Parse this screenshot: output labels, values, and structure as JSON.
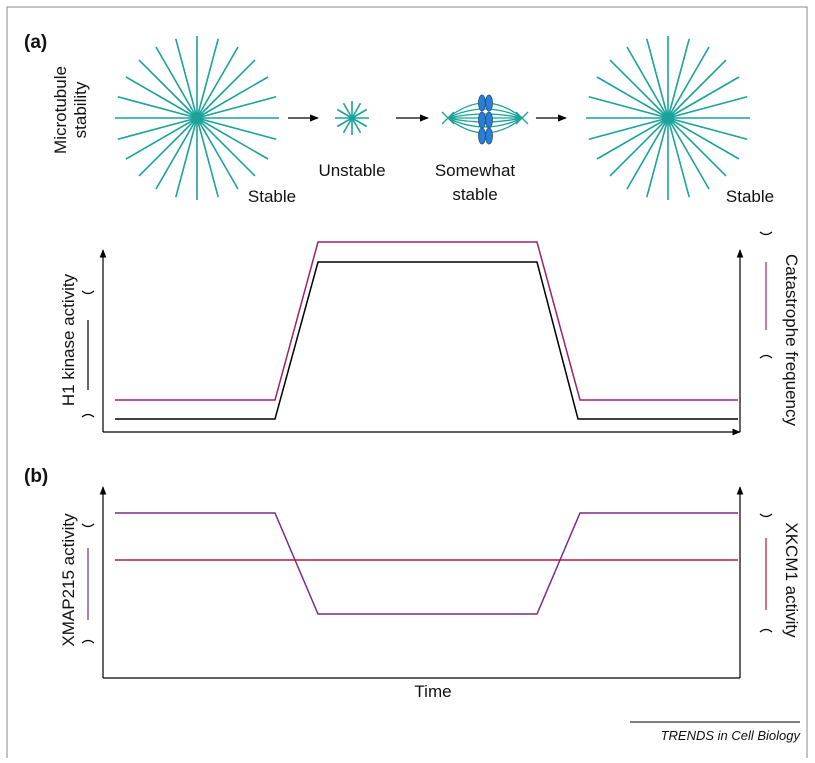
{
  "panel_a": {
    "label": "(a)",
    "stability_label": [
      "Microtubule",
      "stability"
    ],
    "stages": [
      "Stable",
      "Unstable",
      [
        "Somewhat",
        "stable"
      ],
      "Stable"
    ],
    "left_axis": "H1 kinase activity",
    "right_axis": "Catastrophe frequency"
  },
  "panel_b": {
    "label": "(b)",
    "left_axis": "XMAP215 activity",
    "right_axis": "XKCM1 activity",
    "x_axis": "Time"
  },
  "footer": "TRENDS in Cell Biology"
}
